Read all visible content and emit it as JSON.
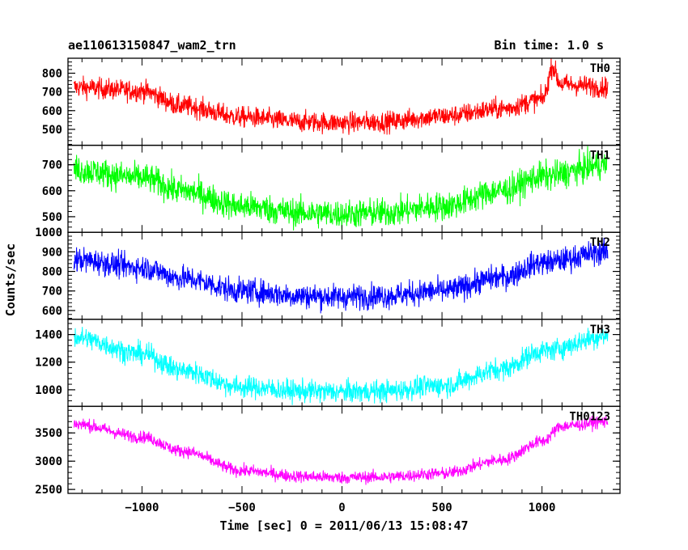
{
  "chart_data": {
    "type": "line",
    "title": "ae110613150847_wam2_trn",
    "bin_time_label": "Bin time: 1.0 s",
    "xlabel": "Time [sec] 0 = 2011/06/13 15:08:47",
    "ylabel": "Counts/sec",
    "xlim": [
      -1370,
      1390
    ],
    "x_ticks": [
      -1000,
      -500,
      0,
      500,
      1000
    ],
    "x_tick_labels": [
      "−1000",
      "−500",
      "0",
      "500",
      "1000"
    ],
    "x_range_data": [
      -1340,
      1330
    ],
    "grid": false,
    "panels": [
      {
        "name": "TH0",
        "color": "#ff0000",
        "ylim": [
          415,
          880
        ],
        "y_ticks": [
          500,
          600,
          700,
          800
        ],
        "y_tick_labels": [
          "500",
          "600",
          "700",
          "800"
        ],
        "noise": 28,
        "spike": {
          "x": 1050,
          "amp": 135,
          "width": 25
        },
        "profile": [
          [
            -1340,
            725
          ],
          [
            -1000,
            705
          ],
          [
            -800,
            625
          ],
          [
            -500,
            565
          ],
          [
            -200,
            540
          ],
          [
            0,
            535
          ],
          [
            200,
            540
          ],
          [
            500,
            570
          ],
          [
            800,
            610
          ],
          [
            1000,
            660
          ],
          [
            1100,
            740
          ],
          [
            1330,
            725
          ]
        ]
      },
      {
        "name": "TH1",
        "color": "#00ff00",
        "ylim": [
          440,
          775
        ],
        "y_ticks": [
          500,
          600,
          700
        ],
        "y_tick_labels": [
          "500",
          "600",
          "700"
        ],
        "noise": 28,
        "profile": [
          [
            -1340,
            680
          ],
          [
            -1000,
            650
          ],
          [
            -800,
            600
          ],
          [
            -500,
            540
          ],
          [
            -200,
            515
          ],
          [
            0,
            510
          ],
          [
            200,
            515
          ],
          [
            500,
            540
          ],
          [
            800,
            600
          ],
          [
            1000,
            655
          ],
          [
            1330,
            700
          ]
        ]
      },
      {
        "name": "TH2",
        "color": "#0000ff",
        "ylim": [
          555,
          1000
        ],
        "y_ticks": [
          600,
          700,
          800,
          900,
          1000
        ],
        "y_tick_labels": [
          "600",
          "700",
          "800",
          "900",
          "1000"
        ],
        "noise": 32,
        "profile": [
          [
            -1340,
            860
          ],
          [
            -1000,
            820
          ],
          [
            -800,
            765
          ],
          [
            -500,
            700
          ],
          [
            -200,
            675
          ],
          [
            0,
            670
          ],
          [
            200,
            675
          ],
          [
            500,
            700
          ],
          [
            800,
            770
          ],
          [
            1000,
            845
          ],
          [
            1330,
            900
          ]
        ]
      },
      {
        "name": "TH3",
        "color": "#00ffff",
        "ylim": [
          880,
          1510
        ],
        "y_ticks": [
          1000,
          1200,
          1400
        ],
        "y_tick_labels": [
          "1000",
          "1200",
          "1400"
        ],
        "noise": 40,
        "profile": [
          [
            -1340,
            1380
          ],
          [
            -1000,
            1260
          ],
          [
            -800,
            1140
          ],
          [
            -500,
            1020
          ],
          [
            -200,
            990
          ],
          [
            0,
            985
          ],
          [
            200,
            990
          ],
          [
            500,
            1030
          ],
          [
            800,
            1150
          ],
          [
            1000,
            1280
          ],
          [
            1330,
            1390
          ]
        ]
      },
      {
        "name": "TH0123",
        "color": "#ff00ff",
        "ylim": [
          2430,
          3970
        ],
        "y_ticks": [
          2500,
          3000,
          3500
        ],
        "y_tick_labels": [
          "2500",
          "3000",
          "3500"
        ],
        "noise": 55,
        "profile": [
          [
            -1340,
            3660
          ],
          [
            -1000,
            3430
          ],
          [
            -800,
            3180
          ],
          [
            -500,
            2830
          ],
          [
            -200,
            2730
          ],
          [
            0,
            2710
          ],
          [
            200,
            2720
          ],
          [
            500,
            2780
          ],
          [
            800,
            3020
          ],
          [
            1000,
            3350
          ],
          [
            1100,
            3620
          ],
          [
            1330,
            3700
          ]
        ]
      }
    ]
  }
}
